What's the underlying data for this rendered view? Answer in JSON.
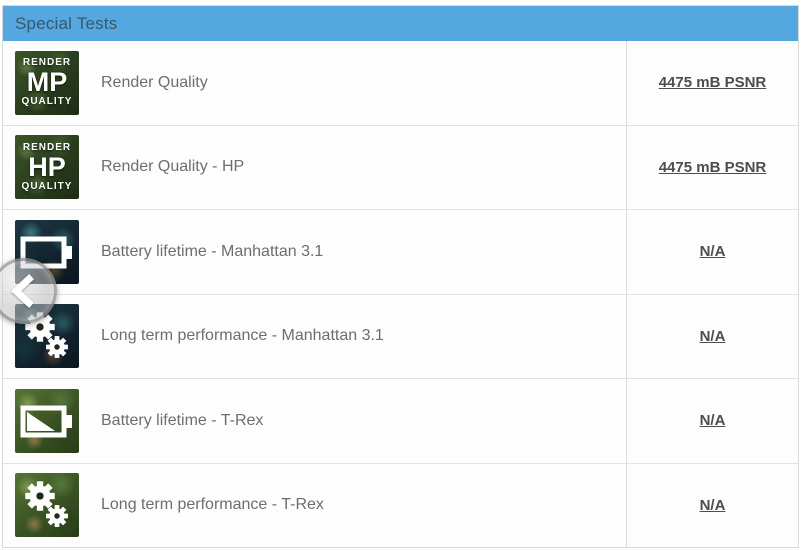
{
  "header": {
    "title": "Special Tests"
  },
  "colors": {
    "header_bg": "#55a7e0",
    "header_text": "#35596f",
    "row_border": "#e2e2e2",
    "label_text": "#6e6e6e",
    "value_text": "#4d4d4d"
  },
  "rows": [
    {
      "label": "Render Quality",
      "value": "4475 mB PSNR",
      "icon": "render-mp-quality-icon",
      "variant": "forest",
      "overlay": {
        "line1": "RENDER",
        "line2": "MP",
        "line3": "QUALITY"
      }
    },
    {
      "label": "Render Quality - HP",
      "value": "4475 mB PSNR",
      "icon": "render-hp-quality-icon",
      "variant": "forest",
      "overlay": {
        "line1": "RENDER",
        "line2": "HP",
        "line3": "QUALITY"
      }
    },
    {
      "label": "Battery lifetime - Manhattan 3.1",
      "value": "N/A",
      "icon": "battery-empty-icon",
      "variant": "manhattan"
    },
    {
      "label": "Long term performance - Manhattan 3.1",
      "value": "N/A",
      "icon": "gears-icon",
      "variant": "manhattan"
    },
    {
      "label": "Battery lifetime - T-Rex",
      "value": "N/A",
      "icon": "battery-half-icon",
      "variant": "trex"
    },
    {
      "label": "Long term performance - T-Rex",
      "value": "N/A",
      "icon": "gears-icon",
      "variant": "trex"
    }
  ],
  "carousel": {
    "prev_icon": "chevron-left-icon"
  }
}
